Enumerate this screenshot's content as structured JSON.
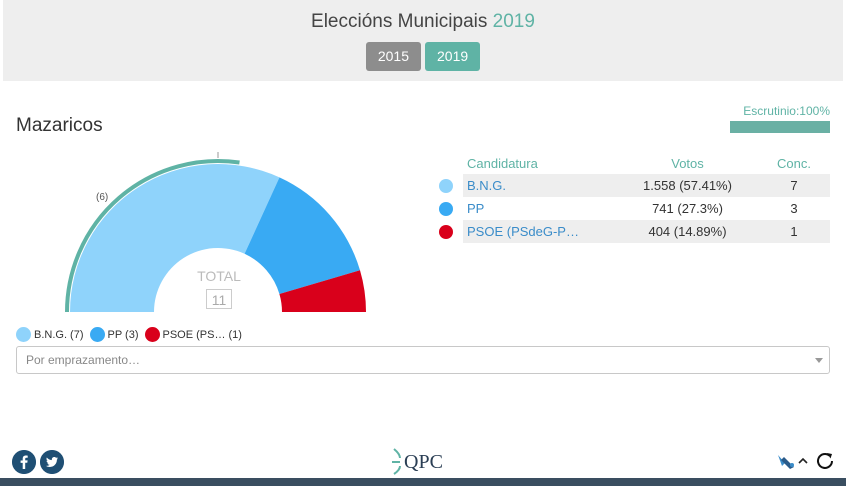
{
  "header": {
    "title_main": "Eleccións Municipais",
    "title_year": "2019",
    "years": [
      {
        "label": "2015",
        "active": false
      },
      {
        "label": "2019",
        "active": true
      }
    ]
  },
  "municipality": "Mazaricos",
  "scrutiny": {
    "label": "Escrutinio:100%",
    "percent": 100
  },
  "chart_data": {
    "type": "pie",
    "categories": [
      "B.N.G.",
      "PP",
      "PSOE (PSdeG-P…"
    ],
    "values": [
      7,
      3,
      1
    ],
    "majority_label": "(6)",
    "total_label": "TOTAL",
    "total_value": "11",
    "colors": [
      "#8fd3fb",
      "#39aaf3",
      "#d9001b"
    ]
  },
  "table": {
    "headers": {
      "candidature": "Candidatura",
      "votes": "Votos",
      "seats": "Conc."
    },
    "rows": [
      {
        "name": "B.N.G.",
        "votes": "1.558 (57.41%)",
        "seats": "7",
        "color": "#8fd3fb"
      },
      {
        "name": "PP",
        "votes": "741 (27.3%)",
        "seats": "3",
        "color": "#39aaf3"
      },
      {
        "name": "PSOE (PSdeG-P…",
        "votes": "404 (14.89%)",
        "seats": "1",
        "color": "#d9001b"
      }
    ]
  },
  "legend": [
    {
      "label": "B.N.G. (7)",
      "color": "#8fd3fb"
    },
    {
      "label": "PP (3)",
      "color": "#39aaf3"
    },
    {
      "label": "PSOE (PS… (1)",
      "color": "#d9001b"
    }
  ],
  "location_select": {
    "placeholder": "Por emprazamento…"
  },
  "footer": {
    "logo_text": "QPC",
    "icons": [
      "facebook-icon",
      "twitter-icon",
      "map-icon",
      "chevron-up-icon",
      "refresh-icon"
    ]
  }
}
